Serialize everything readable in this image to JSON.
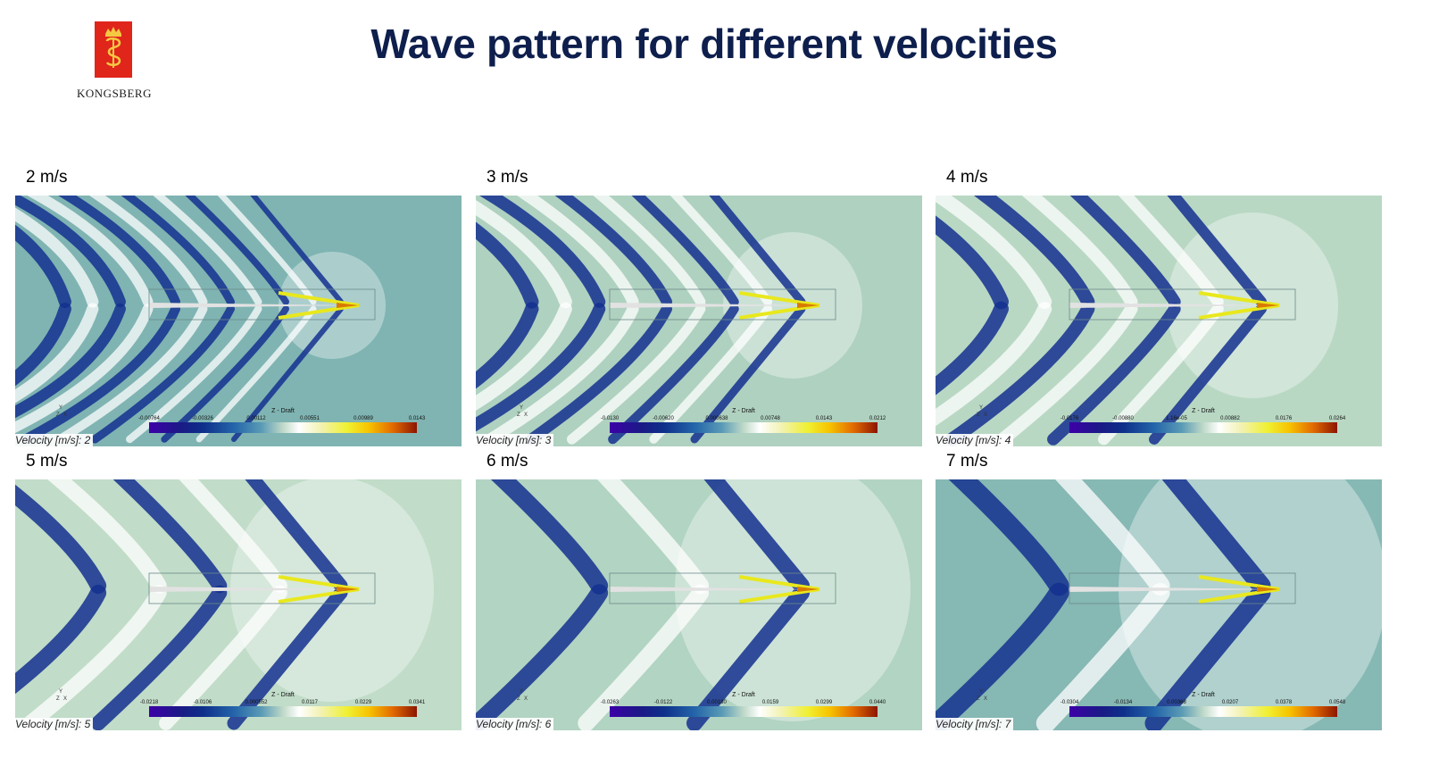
{
  "title": "Wave pattern for different velocities",
  "logo": {
    "wordmark": "KONGSBERG",
    "color": "#e0251b"
  },
  "colorbar_title": "Z - Draft",
  "axis_labels": [
    "Y",
    "Z",
    "X"
  ],
  "panels": [
    {
      "label": "2 m/s",
      "caption": "Velocity [m/s]: 2",
      "ticks": [
        "-0.00764",
        "-0.00326",
        "0.00112",
        "0.00551",
        "0.00989",
        "0.0143"
      ],
      "background": "#7fb4b2"
    },
    {
      "label": "3 m/s",
      "caption": "Velocity [m/s]: 3",
      "ticks": [
        "-0.0130",
        "-0.00620",
        "0.000638",
        "0.00748",
        "0.0143",
        "0.0212"
      ],
      "background": "#afd1c0"
    },
    {
      "label": "4 m/s",
      "caption": "Velocity [m/s]: 4",
      "ticks": [
        "-0.0176",
        "-0.00880",
        "1.16e-05",
        "0.00882",
        "0.0176",
        "0.0264"
      ],
      "background": "#b9d8c4"
    },
    {
      "label": "5 m/s",
      "caption": "Velocity [m/s]: 5",
      "ticks": [
        "-0.0218",
        "-0.0106",
        "0.000552",
        "0.0117",
        "0.0229",
        "0.0341"
      ],
      "background": "#c1dcc8"
    },
    {
      "label": "6 m/s",
      "caption": "Velocity [m/s]: 6",
      "ticks": [
        "-0.0263",
        "-0.0122",
        "0.00180",
        "0.0159",
        "0.0299",
        "0.0440"
      ],
      "background": "#b2d4c2"
    },
    {
      "label": "7 m/s",
      "caption": "Velocity [m/s]: 7",
      "ticks": [
        "-0.0304",
        "-0.0134",
        "0.00368",
        "0.0207",
        "0.0378",
        "0.0548"
      ],
      "background": "#86b8b4"
    }
  ]
}
